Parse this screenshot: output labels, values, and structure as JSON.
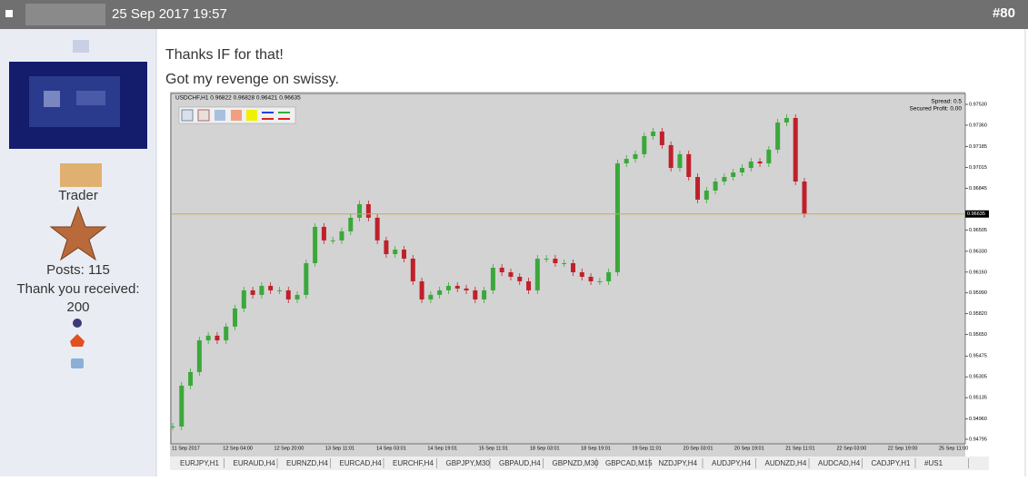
{
  "header": {
    "date": "25 Sep 2017 19:57",
    "post_number": "#80"
  },
  "user": {
    "rank": "Trader",
    "posts": "Posts: 115",
    "thanks_label": "Thank you received:",
    "thanks": 200
  },
  "body": {
    "lines": [
      "Thanks IF for that!",
      "Got my revenge on swissy."
    ]
  },
  "chart_data": {
    "type": "candlestick",
    "symbol_line": "USDCHF,H1  0.96822 0.96828 0.96421 0.96635",
    "spread": "Spread: 0.5",
    "secured_profit": "Secured Profit: 0.00",
    "up_color": "#3aa83a",
    "down_color": "#c0202a",
    "current_price": 0.96635,
    "x_labels": [
      "11 Sep 2017",
      "12 Sep 04:00",
      "12 Sep 20:00",
      "13 Sep 11:01",
      "14 Sep 03:01",
      "14 Sep 19:01",
      "15 Sep 11:01",
      "18 Sep 03:01",
      "18 Sep 19:01",
      "19 Sep 11:01",
      "20 Sep 03:01",
      "20 Sep 19:01",
      "21 Sep 11:01",
      "22 Sep 03:00",
      "22 Sep 19:00",
      "25 Sep 11:00"
    ],
    "ylim": [
      0.94758,
      0.97619
    ],
    "yticks": [
      {
        "value": 0.9753,
        "label": "0.97530"
      },
      {
        "value": 0.9736,
        "label": "0.97360"
      },
      0.97185,
      {
        "value": 0.97015,
        "label": "0.97015"
      },
      0.96845,
      0.96505,
      {
        "value": 0.9633,
        "label": "0.96330"
      },
      {
        "value": 0.9616,
        "label": "0.96160"
      },
      {
        "value": 0.9599,
        "label": "0.95990"
      },
      {
        "value": 0.9582,
        "label": "0.95820"
      },
      {
        "value": 0.9565,
        "label": "0.95650"
      },
      0.95475,
      0.95305,
      0.95135,
      {
        "value": 0.9496,
        "label": "0.94960"
      },
      0.94795
    ],
    "values": [
      0.94899,
      0.95233,
      0.95344,
      0.95603,
      0.95641,
      0.95603,
      0.95715,
      0.95863,
      0.96011,
      0.95974,
      0.96048,
      0.96011,
      0.96011,
      0.95937,
      0.95974,
      0.96233,
      0.9653,
      0.96419,
      0.96419,
      0.96493,
      0.96604,
      0.96715,
      0.96604,
      0.96419,
      0.96307,
      0.96344,
      0.9627,
      0.96085,
      0.95937,
      0.95974,
      0.96011,
      0.96048,
      0.96026,
      0.96011,
      0.95937,
      0.96011,
      0.96196,
      0.96159,
      0.96122,
      0.96085,
      0.96011,
      0.9627,
      0.9627,
      0.96233,
      0.96233,
      0.96159,
      0.96122,
      0.96085,
      0.96085,
      0.96159,
      0.97048,
      0.97085,
      0.97123,
      0.97271,
      0.97308,
      0.97197,
      0.97011,
      0.97123,
      0.96937,
      0.96752,
      0.96826,
      0.969,
      0.96937,
      0.96974,
      0.97011,
      0.97063,
      0.97048,
      0.9716,
      0.97382,
      0.97419,
      0.969,
      0.96635
    ]
  },
  "tabs": [
    "EURJPY,H1",
    "EURAUD,H4",
    "EURNZD,H4",
    "EURCAD,H4",
    "EURCHF,H4",
    "GBPJPY,M30",
    "GBPAUD,H4",
    "GBPNZD,M30",
    "GBPCAD,M15",
    "NZDJPY,H4",
    "AUDJPY,H4",
    "AUDNZD,H4",
    "AUDCAD,H4",
    "CADJPY,H1",
    "#US1"
  ]
}
